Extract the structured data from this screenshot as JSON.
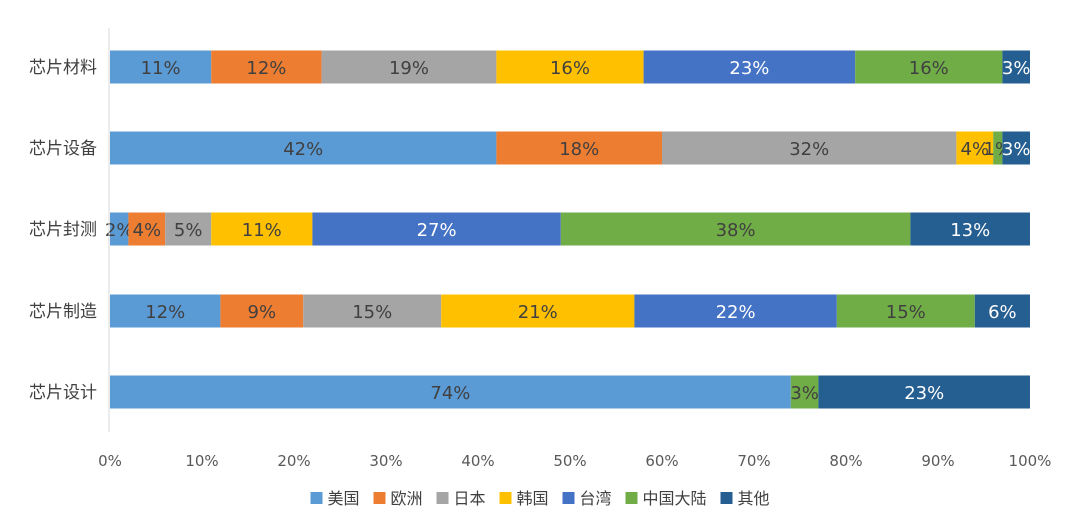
{
  "chart_data": {
    "type": "bar",
    "orientation": "horizontal",
    "stacked": true,
    "percent": true,
    "categories": [
      "芯片材料",
      "芯片设备",
      "芯片封测",
      "芯片制造",
      "芯片设计"
    ],
    "series": [
      {
        "name": "美国",
        "color": "#5B9BD5",
        "values": [
          11,
          42,
          2,
          12,
          74
        ]
      },
      {
        "name": "欧洲",
        "color": "#ED7D31",
        "values": [
          12,
          18,
          4,
          9,
          0
        ]
      },
      {
        "name": "日本",
        "color": "#A5A5A5",
        "values": [
          19,
          32,
          5,
          15,
          0
        ]
      },
      {
        "name": "韩国",
        "color": "#FFC000",
        "values": [
          16,
          4,
          11,
          21,
          0
        ]
      },
      {
        "name": "台湾",
        "color": "#4472C4",
        "values": [
          23,
          0,
          27,
          22,
          0
        ]
      },
      {
        "name": "中国大陆",
        "color": "#70AD47",
        "values": [
          16,
          1,
          38,
          15,
          3
        ]
      },
      {
        "name": "其他",
        "color": "#255E91",
        "values": [
          3,
          3,
          13,
          6,
          23
        ]
      }
    ],
    "xlim": [
      0,
      100
    ],
    "xticks": [
      "0%",
      "10%",
      "20%",
      "30%",
      "40%",
      "50%",
      "60%",
      "70%",
      "80%",
      "90%",
      "100%"
    ],
    "grid": false,
    "legend": "bottom",
    "xlabel": "",
    "ylabel": ""
  }
}
